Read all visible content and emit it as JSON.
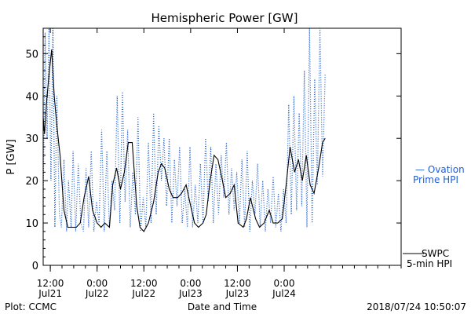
{
  "chart_data": {
    "type": "line",
    "title": "Hemispheric Power [GW]",
    "ylabel": "P [GW]",
    "xlabel": "Date and Time",
    "ylim": [
      0,
      56
    ],
    "yticks": [
      0,
      10,
      20,
      30,
      40,
      50
    ],
    "xlim": [
      "2018-07-21T10:10",
      "2018-07-25T06:00"
    ],
    "xticks": [
      {
        "t": "2018-07-21T12:00",
        "time": "12:00",
        "date": "Jul21"
      },
      {
        "t": "2018-07-22T00:00",
        "time": "0:00",
        "date": "Jul22"
      },
      {
        "t": "2018-07-22T12:00",
        "time": "12:00",
        "date": "Jul22"
      },
      {
        "t": "2018-07-23T00:00",
        "time": "0:00",
        "date": "Jul23"
      },
      {
        "t": "2018-07-23T12:00",
        "time": "12:00",
        "date": "Jul23"
      },
      {
        "t": "2018-07-24T00:00",
        "time": "0:00",
        "date": "Jul24"
      }
    ],
    "grid": false,
    "series": [
      {
        "name": "SWPC 5-min HPI",
        "color": "#000000",
        "style": "solid",
        "x": [
          "2018-07-21T10:10",
          "2018-07-21T10:30",
          "2018-07-21T11:00",
          "2018-07-21T11:40",
          "2018-07-21T12:20",
          "2018-07-21T13:00",
          "2018-07-21T13:40",
          "2018-07-21T14:30",
          "2018-07-21T15:30",
          "2018-07-21T16:30",
          "2018-07-21T17:40",
          "2018-07-21T18:40",
          "2018-07-21T19:40",
          "2018-07-21T20:40",
          "2018-07-21T21:50",
          "2018-07-21T22:50",
          "2018-07-22T00:00",
          "2018-07-22T01:00",
          "2018-07-22T02:00",
          "2018-07-22T03:10",
          "2018-07-22T04:00",
          "2018-07-22T05:00",
          "2018-07-22T06:00",
          "2018-07-22T07:00",
          "2018-07-22T08:00",
          "2018-07-22T09:00",
          "2018-07-22T10:10",
          "2018-07-22T11:00",
          "2018-07-22T12:00",
          "2018-07-22T13:10",
          "2018-07-22T14:30",
          "2018-07-22T15:40",
          "2018-07-22T16:30",
          "2018-07-22T17:20",
          "2018-07-22T18:30",
          "2018-07-22T19:30",
          "2018-07-22T20:40",
          "2018-07-22T21:40",
          "2018-07-22T22:50",
          "2018-07-23T00:00",
          "2018-07-23T01:00",
          "2018-07-23T02:00",
          "2018-07-23T03:10",
          "2018-07-23T04:00",
          "2018-07-23T05:00",
          "2018-07-23T06:00",
          "2018-07-23T07:00",
          "2018-07-23T08:10",
          "2018-07-23T09:00",
          "2018-07-23T10:10",
          "2018-07-23T11:10",
          "2018-07-23T12:10",
          "2018-07-23T13:30",
          "2018-07-23T14:20",
          "2018-07-23T15:20",
          "2018-07-23T16:40",
          "2018-07-23T17:40",
          "2018-07-23T18:50",
          "2018-07-23T20:10",
          "2018-07-23T21:10",
          "2018-07-23T22:20",
          "2018-07-23T23:30",
          "2018-07-24T00:30",
          "2018-07-24T01:30",
          "2018-07-24T02:40",
          "2018-07-24T03:40",
          "2018-07-24T04:40",
          "2018-07-24T05:40",
          "2018-07-24T06:40",
          "2018-07-24T07:40",
          "2018-07-24T08:50",
          "2018-07-24T09:50",
          "2018-07-24T10:30"
        ],
        "y": [
          35,
          31,
          38,
          45,
          51,
          40,
          33,
          26,
          13,
          9,
          9,
          9,
          10,
          16,
          21,
          13,
          10,
          9,
          10,
          9,
          19,
          23,
          18,
          22,
          29,
          29,
          14,
          9,
          8,
          10,
          15,
          22,
          24,
          23,
          18,
          16,
          16,
          17,
          19,
          14,
          10,
          9,
          10,
          12,
          20,
          26,
          25,
          20,
          16,
          17,
          19,
          10,
          9,
          11,
          16,
          11,
          9,
          10,
          13,
          10,
          10,
          11,
          19,
          28,
          22,
          25,
          20,
          26,
          19,
          17,
          23,
          29,
          30
        ]
      },
      {
        "name": "Ovation Prime HPI",
        "color": "#1f5fd6",
        "style": "dotted",
        "x": [
          "2018-07-21T10:10",
          "2018-07-21T10:40",
          "2018-07-21T11:10",
          "2018-07-21T11:40",
          "2018-07-21T12:10",
          "2018-07-21T12:40",
          "2018-07-21T13:10",
          "2018-07-21T13:40",
          "2018-07-21T14:20",
          "2018-07-21T14:50",
          "2018-07-21T15:30",
          "2018-07-21T16:10",
          "2018-07-21T16:40",
          "2018-07-21T17:20",
          "2018-07-21T17:50",
          "2018-07-21T18:30",
          "2018-07-21T19:10",
          "2018-07-21T19:50",
          "2018-07-21T20:30",
          "2018-07-21T21:10",
          "2018-07-21T21:50",
          "2018-07-21T22:30",
          "2018-07-21T23:10",
          "2018-07-21T23:50",
          "2018-07-22T00:30",
          "2018-07-22T01:10",
          "2018-07-22T01:50",
          "2018-07-22T02:30",
          "2018-07-22T03:10",
          "2018-07-22T03:50",
          "2018-07-22T04:30",
          "2018-07-22T05:10",
          "2018-07-22T05:50",
          "2018-07-22T06:30",
          "2018-07-22T07:10",
          "2018-07-22T07:50",
          "2018-07-22T08:30",
          "2018-07-22T09:10",
          "2018-07-22T09:50",
          "2018-07-22T10:30",
          "2018-07-22T11:10",
          "2018-07-22T11:50",
          "2018-07-22T12:30",
          "2018-07-22T13:10",
          "2018-07-22T13:50",
          "2018-07-22T14:30",
          "2018-07-22T15:10",
          "2018-07-22T15:50",
          "2018-07-22T16:30",
          "2018-07-22T17:10",
          "2018-07-22T17:50",
          "2018-07-22T18:30",
          "2018-07-22T19:10",
          "2018-07-22T19:50",
          "2018-07-22T20:30",
          "2018-07-22T21:10",
          "2018-07-22T21:50",
          "2018-07-22T22:30",
          "2018-07-22T23:10",
          "2018-07-22T23:50",
          "2018-07-23T00:30",
          "2018-07-23T01:10",
          "2018-07-23T01:50",
          "2018-07-23T02:30",
          "2018-07-23T03:10",
          "2018-07-23T03:50",
          "2018-07-23T04:30",
          "2018-07-23T05:10",
          "2018-07-23T05:50",
          "2018-07-23T06:30",
          "2018-07-23T07:10",
          "2018-07-23T07:50",
          "2018-07-23T08:30",
          "2018-07-23T09:10",
          "2018-07-23T09:50",
          "2018-07-23T10:30",
          "2018-07-23T11:10",
          "2018-07-23T11:50",
          "2018-07-23T12:30",
          "2018-07-23T13:10",
          "2018-07-23T13:50",
          "2018-07-23T14:30",
          "2018-07-23T15:10",
          "2018-07-23T15:50",
          "2018-07-23T16:30",
          "2018-07-23T17:10",
          "2018-07-23T17:50",
          "2018-07-23T18:30",
          "2018-07-23T19:10",
          "2018-07-23T19:50",
          "2018-07-23T20:30",
          "2018-07-23T21:10",
          "2018-07-23T21:50",
          "2018-07-23T22:30",
          "2018-07-23T23:10",
          "2018-07-23T23:50",
          "2018-07-24T00:30",
          "2018-07-24T01:10",
          "2018-07-24T01:50",
          "2018-07-24T02:30",
          "2018-07-24T03:10",
          "2018-07-24T03:50",
          "2018-07-24T04:30",
          "2018-07-24T05:10",
          "2018-07-24T05:50",
          "2018-07-24T06:30",
          "2018-07-24T07:10",
          "2018-07-24T07:50",
          "2018-07-24T08:30",
          "2018-07-24T09:10",
          "2018-07-24T09:50",
          "2018-07-24T10:30"
        ],
        "y": [
          15,
          55,
          30,
          56,
          20,
          56,
          9,
          40,
          12,
          9,
          25,
          8,
          20,
          9,
          27,
          8,
          24,
          10,
          8,
          23,
          9,
          27,
          8,
          15,
          10,
          32,
          8,
          27,
          9,
          20,
          13,
          40,
          10,
          41,
          15,
          32,
          9,
          22,
          12,
          35,
          8,
          16,
          9,
          29,
          10,
          36,
          12,
          33,
          20,
          30,
          14,
          30,
          10,
          25,
          14,
          28,
          10,
          18,
          9,
          28,
          9,
          19,
          10,
          24,
          10,
          30,
          15,
          28,
          10,
          24,
          12,
          26,
          16,
          29,
          12,
          23,
          13,
          22,
          10,
          25,
          9,
          27,
          8,
          20,
          12,
          24,
          9,
          20,
          8,
          18,
          10,
          21,
          9,
          17,
          8,
          18,
          10,
          38,
          12,
          40,
          13,
          36,
          14,
          46,
          9,
          56,
          10,
          44,
          19,
          56,
          21,
          45
        ]
      }
    ],
    "legend": [
      {
        "line1": "— Ovation",
        "line2": "Prime HPI",
        "color": "#1f5fd6"
      },
      {
        "line1": "SWPC",
        "line2": "5-min HPI",
        "color": "#000000"
      }
    ],
    "legend_position": "right"
  },
  "footer": {
    "left": "Plot: CCMC",
    "center": "Date and Time",
    "right": "2018/07/24 10:50:07"
  }
}
